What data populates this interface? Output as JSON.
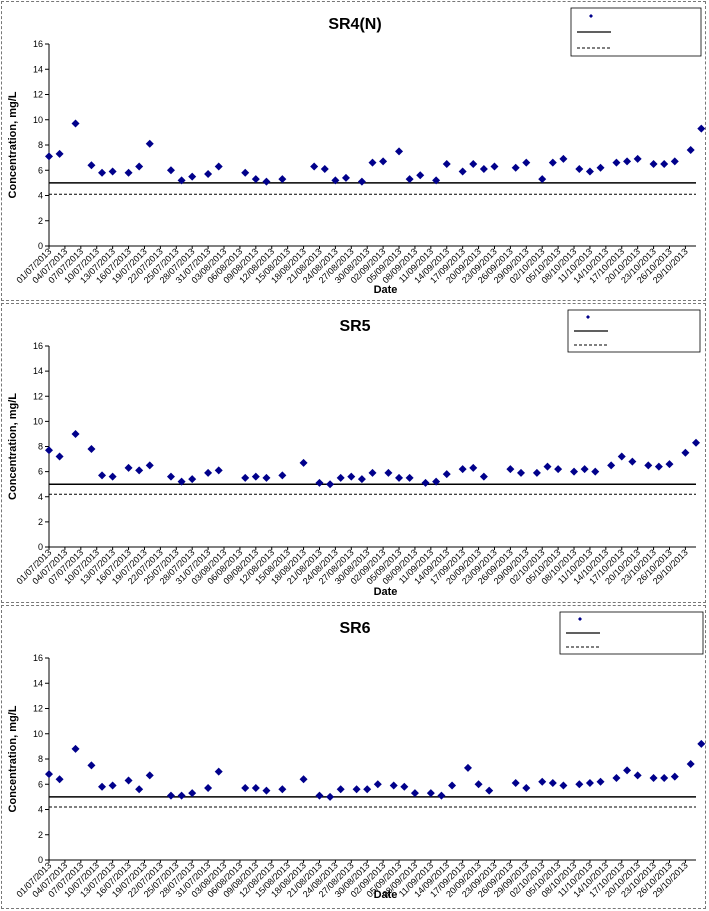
{
  "charts": [
    {
      "title": "SR4(N)",
      "legend": {
        "series": "",
        "upper": "",
        "lower": ""
      },
      "chart_data": null
    }
  ],
  "chart_data": [
    {
      "type": "scatter",
      "title": "SR4(N)",
      "xlabel": "Date",
      "ylabel": "Concentration, mg/L",
      "ylim": [
        0,
        16
      ],
      "yticks": [
        0,
        2,
        4,
        6,
        8,
        10,
        12,
        14,
        16
      ],
      "x_range": [
        "01/07/2013",
        "31/10/2013"
      ],
      "xticks": [
        "01/07/2013",
        "04/07/2013",
        "07/07/2013",
        "10/07/2013",
        "13/07/2013",
        "16/07/2013",
        "19/07/2013",
        "22/07/2013",
        "25/07/2013",
        "28/07/2013",
        "31/07/2013",
        "03/08/2013",
        "06/08/2013",
        "09/08/2013",
        "12/08/2013",
        "15/08/2013",
        "18/08/2013",
        "21/08/2013",
        "24/08/2013",
        "27/08/2013",
        "30/08/2013",
        "02/09/2013",
        "05/09/2013",
        "08/09/2013",
        "11/09/2013",
        "14/09/2013",
        "17/09/2013",
        "20/09/2013",
        "23/09/2013",
        "26/09/2013",
        "29/09/2013",
        "02/10/2013",
        "05/10/2013",
        "08/10/2013",
        "11/10/2013",
        "14/10/2013",
        "17/10/2013",
        "20/10/2013",
        "23/10/2013",
        "26/10/2013",
        "29/10/2013"
      ],
      "grid": false,
      "legend_position": "top-right",
      "series": [
        {
          "x": [
            "01/07/2013",
            "03/07/2013",
            "06/07/2013",
            "09/07/2013",
            "11/07/2013",
            "13/07/2013",
            "16/07/2013",
            "18/07/2013",
            "20/07/2013",
            "24/07/2013",
            "26/07/2013",
            "28/07/2013",
            "31/07/2013",
            "02/08/2013",
            "07/08/2013",
            "09/08/2013",
            "11/08/2013",
            "14/08/2013",
            "20/08/2013",
            "22/08/2013",
            "24/08/2013",
            "26/08/2013",
            "29/08/2013",
            "31/08/2013",
            "02/09/2013",
            "05/09/2013",
            "07/09/2013",
            "09/09/2013",
            "12/09/2013",
            "14/09/2013",
            "17/09/2013",
            "19/09/2013",
            "21/09/2013",
            "23/09/2013",
            "27/09/2013",
            "29/09/2013",
            "02/10/2013",
            "04/10/2013",
            "06/10/2013",
            "09/10/2013",
            "11/10/2013",
            "13/10/2013",
            "16/10/2013",
            "18/10/2013",
            "20/10/2013",
            "23/10/2013",
            "25/10/2013",
            "27/10/2013",
            "30/10/2013",
            "01/11/2013"
          ],
          "values": [
            7.1,
            7.3,
            9.7,
            6.4,
            5.8,
            5.9,
            5.8,
            6.3,
            8.1,
            6.0,
            5.2,
            5.5,
            5.7,
            6.3,
            5.8,
            5.3,
            5.1,
            5.3,
            6.3,
            6.1,
            5.2,
            5.4,
            5.1,
            6.6,
            6.7,
            7.5,
            5.3,
            5.6,
            5.2,
            6.5,
            5.9,
            6.5,
            6.1,
            6.3,
            6.2,
            6.6,
            5.3,
            6.6,
            6.9,
            6.1,
            5.9,
            6.2,
            6.6,
            6.7,
            6.9,
            6.5,
            6.5,
            6.7,
            7.6,
            9.3
          ],
          "color": "#00008B",
          "marker": "diamond"
        },
        {
          "y": 5.0,
          "style": "solid",
          "color": "#000000"
        },
        {
          "y": 4.1,
          "style": "dashed",
          "color": "#000000"
        }
      ]
    },
    {
      "type": "scatter",
      "title": "SR5",
      "xlabel": "Date",
      "ylabel": "Concentration, mg/L",
      "ylim": [
        0,
        16
      ],
      "yticks": [
        0,
        2,
        4,
        6,
        8,
        10,
        12,
        14,
        16
      ],
      "x_range": [
        "01/07/2013",
        "31/10/2013"
      ],
      "xticks": [
        "01/07/2013",
        "04/07/2013",
        "07/07/2013",
        "10/07/2013",
        "13/07/2013",
        "16/07/2013",
        "19/07/2013",
        "22/07/2013",
        "25/07/2013",
        "28/07/2013",
        "31/07/2013",
        "03/08/2013",
        "06/08/2013",
        "09/08/2013",
        "12/08/2013",
        "15/08/2013",
        "18/08/2013",
        "21/08/2013",
        "24/08/2013",
        "27/08/2013",
        "30/08/2013",
        "02/09/2013",
        "05/09/2013",
        "08/09/2013",
        "11/09/2013",
        "14/09/2013",
        "17/09/2013",
        "20/09/2013",
        "23/09/2013",
        "26/09/2013",
        "29/09/2013",
        "02/10/2013",
        "05/10/2013",
        "08/10/2013",
        "11/10/2013",
        "14/10/2013",
        "17/10/2013",
        "20/10/2013",
        "23/10/2013",
        "26/10/2013",
        "29/10/2013"
      ],
      "grid": false,
      "legend_position": "top-right",
      "series": [
        {
          "x": [
            "01/07/2013",
            "03/07/2013",
            "06/07/2013",
            "09/07/2013",
            "11/07/2013",
            "13/07/2013",
            "16/07/2013",
            "18/07/2013",
            "20/07/2013",
            "24/07/2013",
            "26/07/2013",
            "28/07/2013",
            "31/07/2013",
            "02/08/2013",
            "07/08/2013",
            "09/08/2013",
            "11/08/2013",
            "14/08/2013",
            "18/08/2013",
            "21/08/2013",
            "23/08/2013",
            "25/08/2013",
            "27/08/2013",
            "29/08/2013",
            "31/08/2013",
            "03/09/2013",
            "05/09/2013",
            "07/09/2013",
            "10/09/2013",
            "12/09/2013",
            "14/09/2013",
            "17/09/2013",
            "19/09/2013",
            "21/09/2013",
            "26/09/2013",
            "28/09/2013",
            "01/10/2013",
            "03/10/2013",
            "05/10/2013",
            "08/10/2013",
            "10/10/2013",
            "12/10/2013",
            "15/10/2013",
            "17/10/2013",
            "19/10/2013",
            "22/10/2013",
            "24/10/2013",
            "26/10/2013",
            "29/10/2013",
            "31/10/2013"
          ],
          "values": [
            7.7,
            7.2,
            9.0,
            7.8,
            5.7,
            5.6,
            6.3,
            6.1,
            6.5,
            5.6,
            5.2,
            5.4,
            5.9,
            6.1,
            5.5,
            5.6,
            5.5,
            5.7,
            6.7,
            5.1,
            5.0,
            5.5,
            5.6,
            5.4,
            5.9,
            5.9,
            5.5,
            5.5,
            5.1,
            5.2,
            5.8,
            6.2,
            6.3,
            5.6,
            6.2,
            5.9,
            5.9,
            6.4,
            6.2,
            6.0,
            6.2,
            6.0,
            6.5,
            7.2,
            6.8,
            6.5,
            6.4,
            6.6,
            7.5,
            8.3
          ],
          "color": "#00008B",
          "marker": "diamond"
        },
        {
          "y": 5.0,
          "style": "solid",
          "color": "#000000"
        },
        {
          "y": 4.2,
          "style": "dashed",
          "color": "#000000"
        }
      ]
    },
    {
      "type": "scatter",
      "title": "SR6",
      "xlabel": "Date",
      "ylabel": "Concentration, mg/L",
      "ylim": [
        0,
        16
      ],
      "yticks": [
        0,
        2,
        4,
        6,
        8,
        10,
        12,
        14,
        16
      ],
      "x_range": [
        "01/07/2013",
        "31/10/2013"
      ],
      "xticks": [
        "01/07/2013",
        "04/07/2013",
        "07/07/2013",
        "10/07/2013",
        "13/07/2013",
        "16/07/2013",
        "19/07/2013",
        "22/07/2013",
        "25/07/2013",
        "28/07/2013",
        "31/07/2013",
        "03/08/2013",
        "06/08/2013",
        "09/08/2013",
        "12/08/2013",
        "15/08/2013",
        "18/08/2013",
        "21/08/2013",
        "24/08/2013",
        "27/08/2013",
        "30/08/2013",
        "02/09/2013",
        "05/09/2013",
        "08/09/2013",
        "11/09/2013",
        "14/09/2013",
        "17/09/2013",
        "20/09/2013",
        "23/09/2013",
        "26/09/2013",
        "29/09/2013",
        "02/10/2013",
        "05/10/2013",
        "08/10/2013",
        "11/10/2013",
        "14/10/2013",
        "17/10/2013",
        "20/10/2013",
        "23/10/2013",
        "26/10/2013",
        "29/10/2013"
      ],
      "grid": false,
      "legend_position": "top-right",
      "series": [
        {
          "x": [
            "01/07/2013",
            "03/07/2013",
            "06/07/2013",
            "09/07/2013",
            "11/07/2013",
            "13/07/2013",
            "16/07/2013",
            "18/07/2013",
            "20/07/2013",
            "24/07/2013",
            "26/07/2013",
            "28/07/2013",
            "31/07/2013",
            "02/08/2013",
            "07/08/2013",
            "09/08/2013",
            "11/08/2013",
            "14/08/2013",
            "18/08/2013",
            "21/08/2013",
            "23/08/2013",
            "25/08/2013",
            "28/08/2013",
            "30/08/2013",
            "01/09/2013",
            "04/09/2013",
            "06/09/2013",
            "08/09/2013",
            "11/09/2013",
            "13/09/2013",
            "15/09/2013",
            "18/09/2013",
            "20/09/2013",
            "22/09/2013",
            "27/09/2013",
            "29/09/2013",
            "02/10/2013",
            "04/10/2013",
            "06/10/2013",
            "09/10/2013",
            "11/10/2013",
            "13/10/2013",
            "16/10/2013",
            "18/10/2013",
            "20/10/2013",
            "23/10/2013",
            "25/10/2013",
            "27/10/2013",
            "30/10/2013",
            "01/11/2013"
          ],
          "values": [
            6.8,
            6.4,
            8.8,
            7.5,
            5.8,
            5.9,
            6.3,
            5.6,
            6.7,
            5.1,
            5.1,
            5.3,
            5.7,
            7.0,
            5.7,
            5.7,
            5.5,
            5.6,
            6.4,
            5.1,
            5.0,
            5.6,
            5.6,
            5.6,
            6.0,
            5.9,
            5.8,
            5.3,
            5.3,
            5.1,
            5.9,
            7.3,
            6.0,
            5.5,
            6.1,
            5.7,
            6.2,
            6.1,
            5.9,
            6.0,
            6.1,
            6.2,
            6.5,
            7.1,
            6.7,
            6.5,
            6.5,
            6.6,
            7.6,
            9.2
          ],
          "color": "#00008B",
          "marker": "diamond"
        },
        {
          "y": 5.0,
          "style": "solid",
          "color": "#000000"
        },
        {
          "y": 4.2,
          "style": "dashed",
          "color": "#000000"
        }
      ]
    }
  ]
}
